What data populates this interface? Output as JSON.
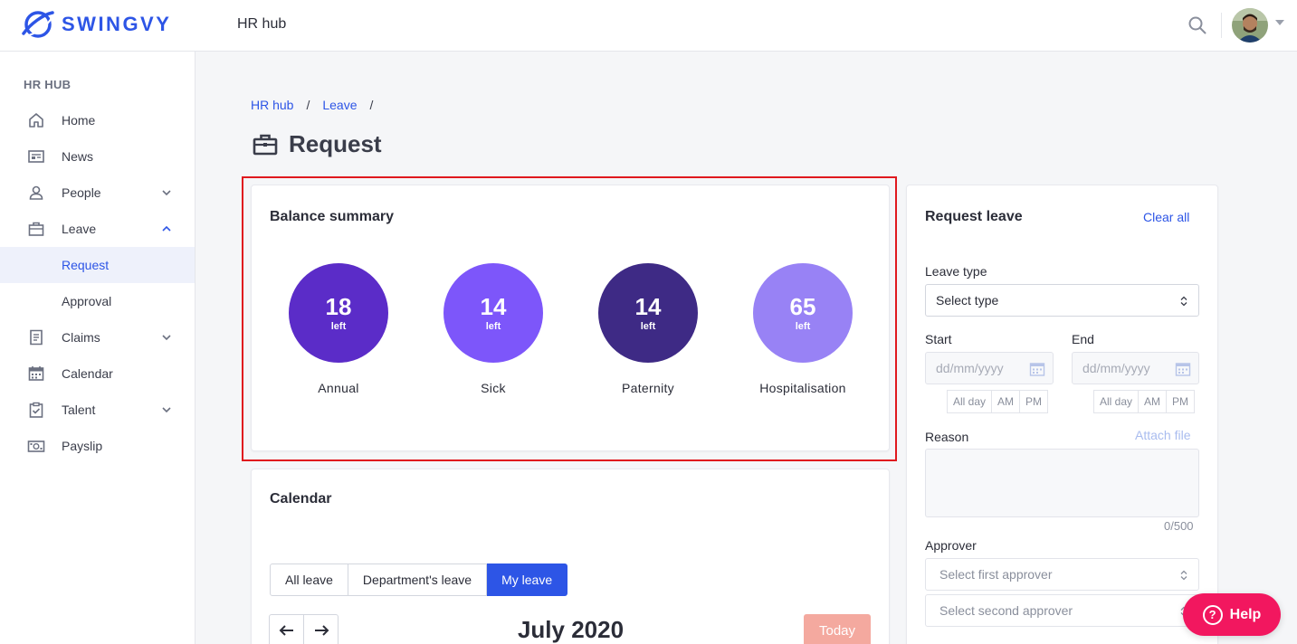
{
  "brand": {
    "name": "SWINGVY",
    "accent": "#2d55e6"
  },
  "header": {
    "app_title": "HR hub",
    "search_icon": "search-icon",
    "avatar": "user-avatar"
  },
  "sidebar": {
    "section": "HR HUB",
    "items": [
      {
        "label": "Home",
        "icon": "home-icon"
      },
      {
        "label": "News",
        "icon": "news-icon"
      },
      {
        "label": "People",
        "icon": "person-icon",
        "expandable": true
      },
      {
        "label": "Leave",
        "icon": "briefcase-icon",
        "expanded": true
      },
      {
        "label": "Request",
        "sub": true,
        "active": true
      },
      {
        "label": "Approval",
        "sub": true
      },
      {
        "label": "Claims",
        "icon": "receipt-icon",
        "expandable": true
      },
      {
        "label": "Calendar",
        "icon": "calendar-icon"
      },
      {
        "label": "Talent",
        "icon": "clipboard-icon",
        "expandable": true
      },
      {
        "label": "Payslip",
        "icon": "money-icon"
      }
    ]
  },
  "breadcrumb": {
    "items": [
      "HR hub",
      "Leave"
    ],
    "sep": "/"
  },
  "page": {
    "title": "Request"
  },
  "balance": {
    "title": "Balance summary",
    "unit": "left",
    "items": [
      {
        "value": "18",
        "label": "Annual",
        "color": "#5b2cc8"
      },
      {
        "value": "14",
        "label": "Sick",
        "color": "#7d56fa"
      },
      {
        "value": "14",
        "label": "Paternity",
        "color": "#3e2a85"
      },
      {
        "value": "65",
        "label": "Hospitalisation",
        "color": "#9882f5"
      }
    ]
  },
  "calendar": {
    "title": "Calendar",
    "filters": [
      "All leave",
      "Department's leave",
      "My leave"
    ],
    "active_filter": "My leave",
    "month": "July 2020",
    "today": "Today",
    "today_color": "#f4a99f"
  },
  "request": {
    "title": "Request leave",
    "clear_all": "Clear all",
    "leave_type_label": "Leave type",
    "leave_type_value": "Select type",
    "start_label": "Start",
    "end_label": "End",
    "date_placeholder": "dd/mm/yyyy",
    "halves": [
      "All day",
      "AM",
      "PM"
    ],
    "reason_label": "Reason",
    "attach_file": "Attach file",
    "counter": "0/500",
    "approver_label": "Approver",
    "first_approver": "Select first approver",
    "second_approver": "Select second approver"
  },
  "help": {
    "label": "Help",
    "color": "#f2175f"
  }
}
